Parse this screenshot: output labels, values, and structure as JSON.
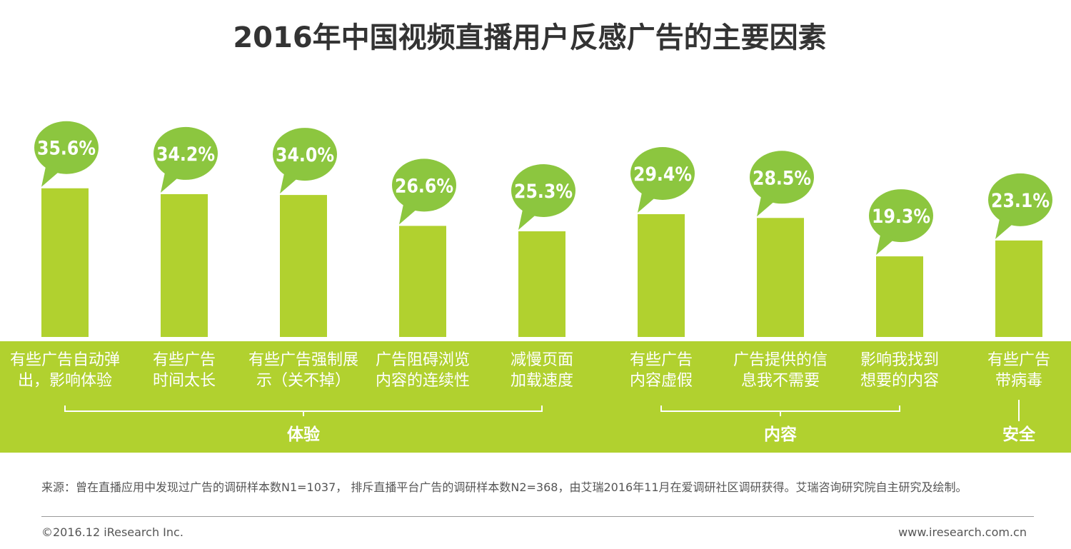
{
  "footer": {
    "note": "来源：曾在直播应用中发现过广告的调研样本数N1=1037， 排斥直播平台广告的调研样本数N2=368，由艾瑞2016年11月在爱调研社区调研获得。艾瑞咨询研究院自主研究及绘制。",
    "copyright": "©2016.12 iResearch Inc.",
    "website": "www.iresearch.com.cn"
  },
  "colors": {
    "bar": "#b1d12f",
    "band": "#b1d12f",
    "bubble": "#8cc63f",
    "title": "#333333"
  },
  "chart_data": {
    "type": "bar",
    "title": "2016年中国视频直播用户反感广告的主要因素",
    "unit": "%",
    "categories": [
      [
        "有些广告自动弹",
        "出，影响体验"
      ],
      [
        "有些广告",
        "时间太长"
      ],
      [
        "有些广告强制展",
        "示（关不掉）"
      ],
      [
        "广告阻碍浏览",
        "内容的连续性"
      ],
      [
        "减慢页面",
        "加载速度"
      ],
      [
        "有些广告",
        "内容虚假"
      ],
      [
        "广告提供的信",
        "息我不需要"
      ],
      [
        "影响我找到",
        "想要的内容"
      ],
      [
        "有些广告",
        "带病毒"
      ]
    ],
    "values": [
      35.6,
      34.2,
      34.0,
      26.6,
      25.3,
      29.4,
      28.5,
      19.3,
      23.1
    ],
    "data_labels": [
      "35.6%",
      "34.2%",
      "34.0%",
      "26.6%",
      "25.3%",
      "29.4%",
      "28.5%",
      "19.3%",
      "23.1%"
    ],
    "groups": [
      {
        "label": "体验",
        "from": 0,
        "to": 4
      },
      {
        "label": "内容",
        "from": 5,
        "to": 7
      },
      {
        "label": "安全",
        "from": 8,
        "to": 8
      }
    ],
    "ylim": [
      0,
      40
    ],
    "grid": false,
    "legend": "none"
  }
}
